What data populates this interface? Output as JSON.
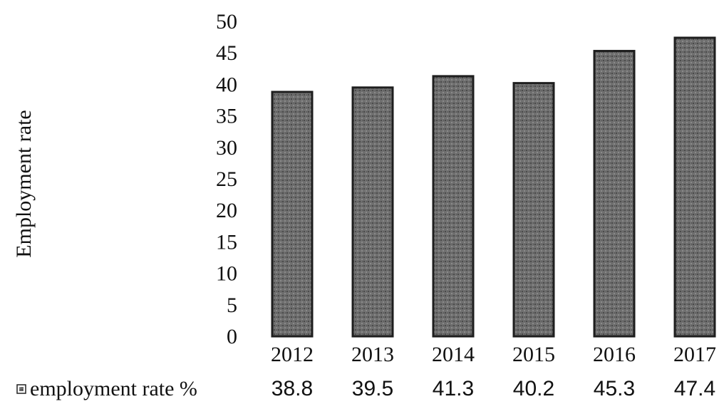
{
  "chart_data": {
    "type": "bar",
    "categories": [
      "2012",
      "2013",
      "2014",
      "2015",
      "2016",
      "2017"
    ],
    "series": [
      {
        "name": "employment rate %",
        "values": [
          38.8,
          39.5,
          41.3,
          40.2,
          45.3,
          47.4
        ]
      }
    ],
    "ylabel": "Employment rate",
    "xlabel": "",
    "ylim": [
      0,
      50
    ],
    "yticks": [
      "0",
      "5",
      "10",
      "15",
      "20",
      "25",
      "30",
      "35",
      "40",
      "45",
      "50"
    ],
    "legend_position": "bottom-left data table",
    "grid": false,
    "bar_color": "#6f6f6f",
    "bar_edge_color": "#1e1e1e"
  },
  "data_table": {
    "row_label": "employment rate %",
    "values": [
      "38.8",
      "39.5",
      "41.3",
      "40.2",
      "45.3",
      "47.4"
    ]
  }
}
